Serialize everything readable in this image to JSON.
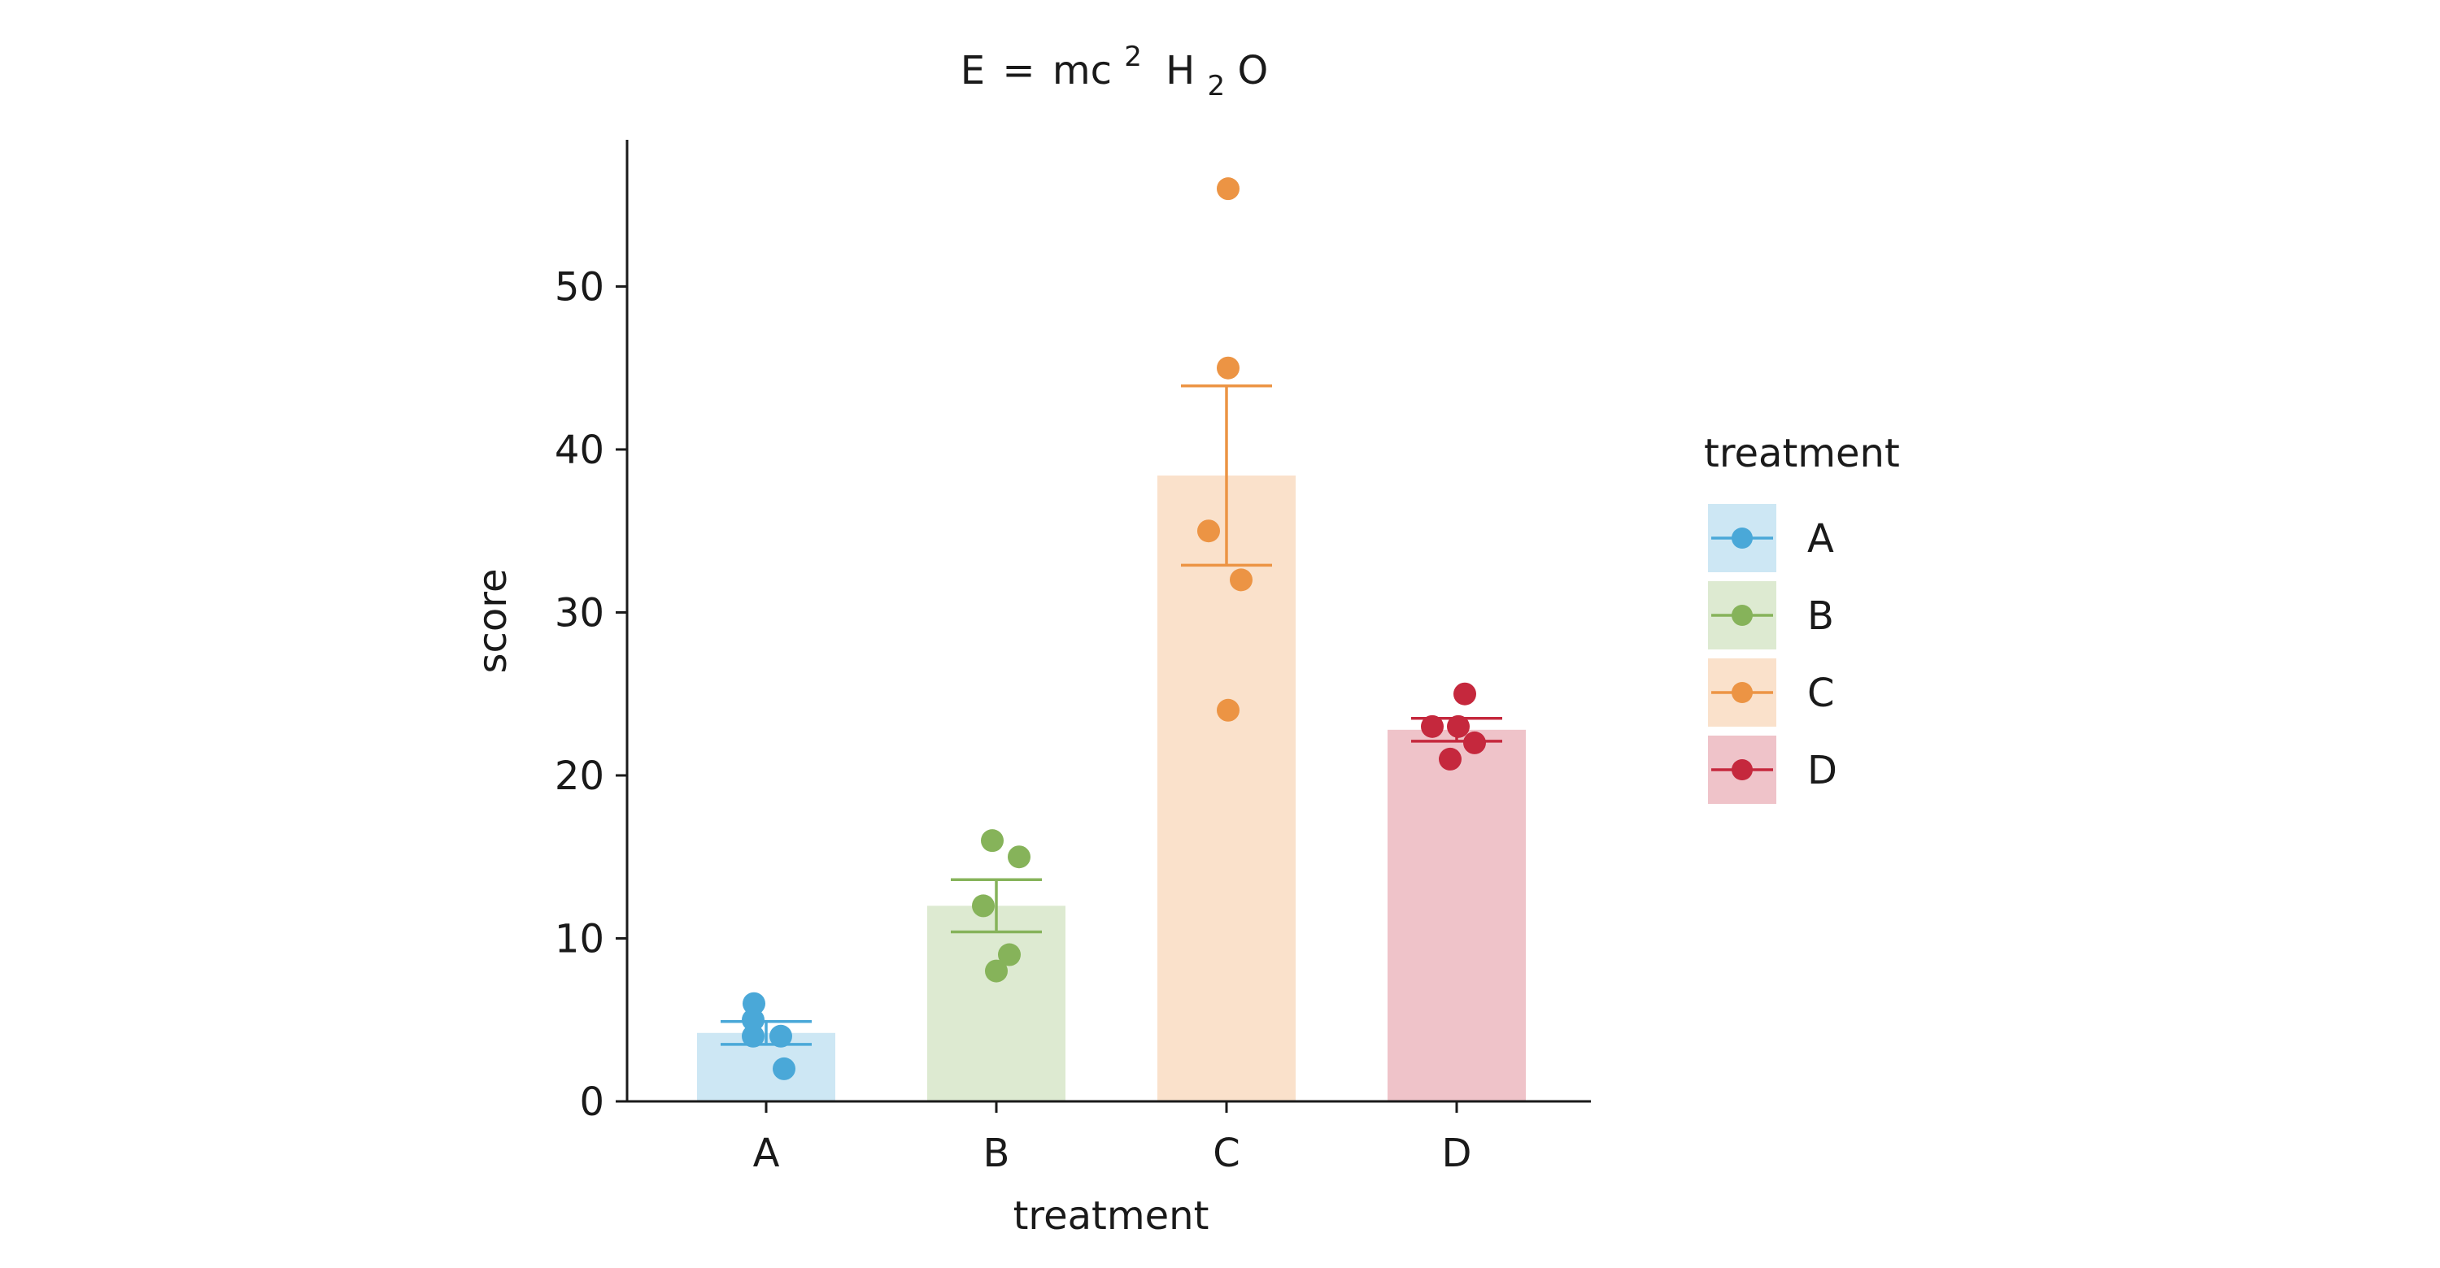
{
  "chart_data": {
    "type": "bar",
    "title": {
      "prefix": "E",
      "eq": "=",
      "mc": "mc",
      "sup": "2",
      "h": "H",
      "sub": "2",
      "o": "O"
    },
    "xlabel": "treatment",
    "ylabel": "score",
    "ylim": [
      0,
      59
    ],
    "yticks": [
      0,
      10,
      20,
      30,
      40,
      50
    ],
    "categories": [
      "A",
      "B",
      "C",
      "D"
    ],
    "values": [
      4.2,
      12.0,
      38.4,
      22.8
    ],
    "error_bars": [
      {
        "low": 3.5,
        "high": 4.9
      },
      {
        "low": 10.4,
        "high": 13.6
      },
      {
        "low": 32.9,
        "high": 43.9
      },
      {
        "low": 22.1,
        "high": 23.5
      }
    ],
    "points": [
      [
        6,
        5,
        4,
        4,
        2
      ],
      [
        16,
        15,
        12,
        9,
        8
      ],
      [
        56,
        45,
        35,
        32,
        24
      ],
      [
        25,
        23,
        23,
        22,
        21
      ]
    ],
    "colors": [
      "#4aa8d8",
      "#86b35a",
      "#ec9444",
      "#c5283d"
    ],
    "legend": {
      "title": "treatment",
      "placement": "right",
      "entries": [
        "A",
        "B",
        "C",
        "D"
      ]
    },
    "grid": false
  }
}
